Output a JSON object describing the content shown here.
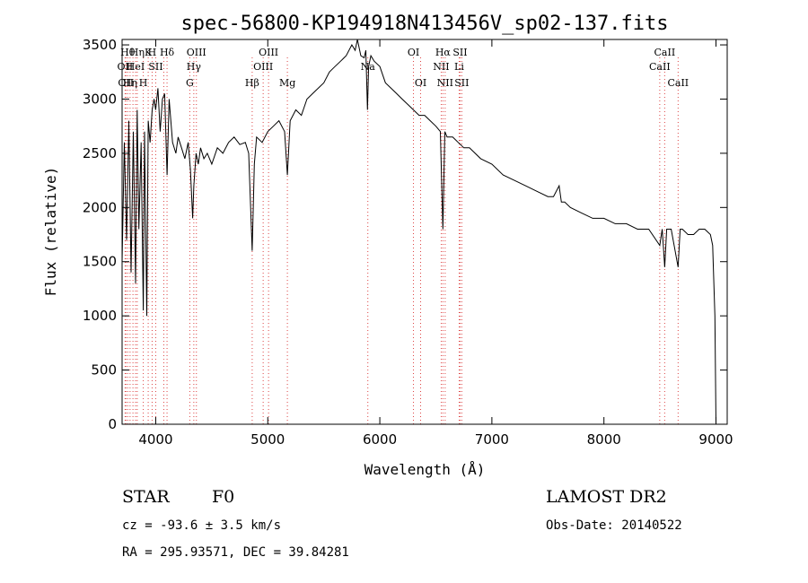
{
  "chart_data": {
    "type": "line",
    "title": "spec-56800-KP194918N413456V_sp02-137.fits",
    "xlabel": "Wavelength (Å)",
    "ylabel": "Flux (relative)",
    "xlim": [
      3700,
      9100
    ],
    "ylim": [
      0,
      3550
    ],
    "x_ticks": [
      4000,
      5000,
      6000,
      7000,
      8000,
      9000
    ],
    "y_ticks": [
      0,
      500,
      1000,
      1500,
      2000,
      2500,
      3000,
      3500
    ],
    "grid": false,
    "series": [
      {
        "name": "",
        "color": "#000000",
        "x": [
          3700,
          3720,
          3740,
          3760,
          3780,
          3800,
          3820,
          3835,
          3850,
          3870,
          3889,
          3900,
          3920,
          3933,
          3950,
          3968,
          3985,
          4000,
          4020,
          4040,
          4060,
          4080,
          4101,
          4120,
          4150,
          4180,
          4200,
          4230,
          4260,
          4290,
          4310,
          4330,
          4340,
          4360,
          4380,
          4400,
          4430,
          4460,
          4500,
          4550,
          4600,
          4650,
          4700,
          4750,
          4800,
          4830,
          4861,
          4880,
          4900,
          4950,
          5000,
          5050,
          5100,
          5150,
          5175,
          5200,
          5250,
          5300,
          5350,
          5400,
          5450,
          5500,
          5550,
          5600,
          5650,
          5700,
          5750,
          5780,
          5800,
          5830,
          5860,
          5875,
          5890,
          5900,
          5920,
          5950,
          6000,
          6050,
          6100,
          6150,
          6200,
          6250,
          6300,
          6350,
          6400,
          6450,
          6500,
          6540,
          6563,
          6580,
          6600,
          6650,
          6700,
          6750,
          6800,
          6900,
          7000,
          7100,
          7200,
          7300,
          7400,
          7500,
          7550,
          7600,
          7620,
          7650,
          7700,
          7800,
          7900,
          8000,
          8100,
          8200,
          8300,
          8400,
          8498,
          8520,
          8542,
          8560,
          8600,
          8662,
          8680,
          8700,
          8750,
          8800,
          8850,
          8900,
          8950,
          8970,
          8990,
          9000
        ],
        "values": [
          1500,
          2600,
          1700,
          2800,
          1400,
          2700,
          1300,
          2900,
          1800,
          2600,
          1050,
          2700,
          1000,
          2800,
          2600,
          2900,
          3000,
          2900,
          3100,
          2700,
          3000,
          3050,
          2300,
          3000,
          2600,
          2500,
          2650,
          2550,
          2450,
          2600,
          2350,
          1900,
          2200,
          2500,
          2400,
          2550,
          2450,
          2500,
          2400,
          2550,
          2500,
          2600,
          2650,
          2580,
          2600,
          2500,
          1600,
          2400,
          2650,
          2600,
          2700,
          2750,
          2800,
          2700,
          2300,
          2800,
          2900,
          2850,
          3000,
          3050,
          3100,
          3150,
          3250,
          3300,
          3350,
          3400,
          3500,
          3450,
          3550,
          3400,
          3380,
          3450,
          2900,
          3300,
          3400,
          3350,
          3300,
          3150,
          3100,
          3050,
          3000,
          2950,
          2900,
          2850,
          2850,
          2800,
          2750,
          2700,
          1800,
          2700,
          2650,
          2650,
          2600,
          2550,
          2550,
          2450,
          2400,
          2300,
          2250,
          2200,
          2150,
          2100,
          2100,
          2200,
          2050,
          2050,
          2000,
          1950,
          1900,
          1900,
          1850,
          1850,
          1800,
          1800,
          1650,
          1800,
          1450,
          1800,
          1800,
          1450,
          1800,
          1800,
          1750,
          1750,
          1800,
          1800,
          1750,
          1650,
          1000,
          0
        ]
      }
    ],
    "line_markers": [
      {
        "wavelength": 3727,
        "label": "OII",
        "row": 2
      },
      {
        "wavelength": 3734,
        "label": "OII",
        "row": 3
      },
      {
        "wavelength": 3750,
        "label": "Hθ",
        "row": 1
      },
      {
        "wavelength": 3771,
        "label": "Hη",
        "row": 3
      },
      {
        "wavelength": 3797,
        "label": "",
        "row": 0
      },
      {
        "wavelength": 3820,
        "label": "HeI",
        "row": 2
      },
      {
        "wavelength": 3835,
        "label": "Hη",
        "row": 0
      },
      {
        "wavelength": 3889,
        "label": "H",
        "row": 3
      },
      {
        "wavelength": 3933,
        "label": "K",
        "row": 1
      },
      {
        "wavelength": 3968,
        "label": "H",
        "row": 0
      },
      {
        "wavelength": 4000,
        "label": "SII",
        "row": 2
      },
      {
        "wavelength": 4072,
        "label": "",
        "row": 0
      },
      {
        "wavelength": 4101,
        "label": "Hδ",
        "row": 1
      },
      {
        "wavelength": 4304,
        "label": "G",
        "row": 3
      },
      {
        "wavelength": 4340,
        "label": "Hγ",
        "row": 2
      },
      {
        "wavelength": 4363,
        "label": "OIII",
        "row": 1
      },
      {
        "wavelength": 4861,
        "label": "Hβ",
        "row": 3
      },
      {
        "wavelength": 4959,
        "label": "OIII",
        "row": 2
      },
      {
        "wavelength": 5007,
        "label": "OIII",
        "row": 1
      },
      {
        "wavelength": 5175,
        "label": "Mg",
        "row": 3
      },
      {
        "wavelength": 5893,
        "label": "Na",
        "row": 2
      },
      {
        "wavelength": 6300,
        "label": "OI",
        "row": 1
      },
      {
        "wavelength": 6364,
        "label": "OI",
        "row": 3
      },
      {
        "wavelength": 6548,
        "label": "NII",
        "row": 2
      },
      {
        "wavelength": 6563,
        "label": "Hα",
        "row": 1
      },
      {
        "wavelength": 6583,
        "label": "NII",
        "row": 3
      },
      {
        "wavelength": 6708,
        "label": "Li",
        "row": 2
      },
      {
        "wavelength": 6716,
        "label": "SII",
        "row": 1
      },
      {
        "wavelength": 6731,
        "label": "SII",
        "row": 3
      },
      {
        "wavelength": 8498,
        "label": "CaII",
        "row": 2
      },
      {
        "wavelength": 8542,
        "label": "CaII",
        "row": 1
      },
      {
        "wavelength": 8662,
        "label": "CaII",
        "row": 3
      }
    ]
  },
  "footer": {
    "object_type": "STAR",
    "subclass": "F0",
    "survey": "LAMOST DR2",
    "redshift": "cz = -93.6 ± 3.5 km/s",
    "obs_date": "Obs-Date: 20140522",
    "coords": "RA = 295.93571, DEC =  39.84281"
  }
}
